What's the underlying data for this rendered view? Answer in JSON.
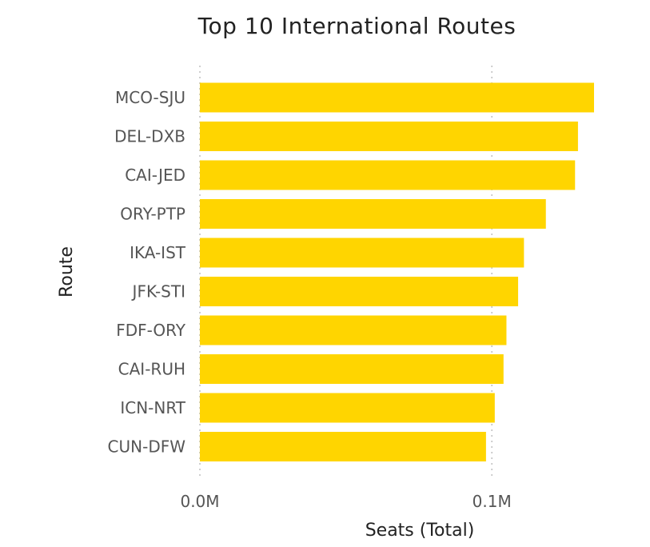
{
  "chart_data": {
    "type": "bar",
    "orientation": "horizontal",
    "title": "Top 10 International Routes",
    "xlabel": "Seats (Total)",
    "ylabel": "Route",
    "categories": [
      "MCO-SJU",
      "DEL-DXB",
      "CAI-JED",
      "ORY-PTP",
      "IKA-IST",
      "JFK-STI",
      "FDF-ORY",
      "CAI-RUH",
      "ICN-NRT",
      "CUN-DFW"
    ],
    "values": [
      135000,
      129500,
      128500,
      118500,
      111000,
      109000,
      105000,
      104000,
      101000,
      98000
    ],
    "xlim": [
      0,
      135000
    ],
    "xticks": [
      0,
      100000
    ],
    "xtick_labels": [
      "0.0M",
      "0.1M"
    ],
    "bar_color": "#FFD500",
    "grid": "vertical-dotted"
  }
}
